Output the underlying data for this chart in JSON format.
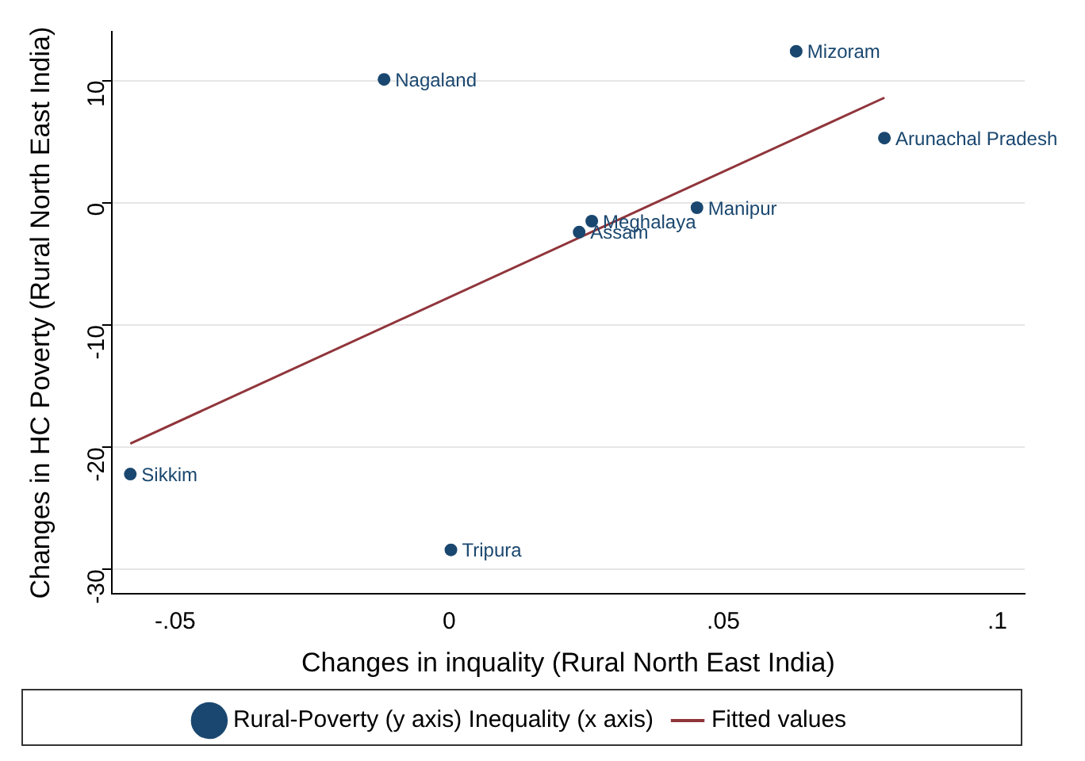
{
  "chart_data": {
    "type": "scatter",
    "xlabel": "Changes in inquality (Rural North East India)",
    "ylabel": "Changes in HC Poverty (Rural North East India)",
    "xlim": [
      -0.0616,
      0.105
    ],
    "xticks": [
      {
        "value": -0.05,
        "label": "-.05"
      },
      0,
      {
        "value": 0.05,
        "label": ".05"
      },
      {
        "value": 0.1,
        "label": ".1"
      }
    ],
    "ylim": [
      -32,
      14
    ],
    "yticks": [
      -30,
      -20,
      -10,
      0,
      10
    ],
    "grid": "y",
    "legend": "bottom",
    "marker": "circle",
    "series": [
      {
        "name": "Rural-Poverty (y axis) Inequality (x axis)",
        "color": "#1a476f",
        "x": [
          -0.0119,
          0.0633,
          0.0794,
          0.0452,
          0.026,
          0.0237,
          -0.0582,
          0.0003
        ],
        "values": [
          10.1,
          12.4,
          5.3,
          -0.4,
          -1.5,
          -2.4,
          -22.2,
          -28.4
        ]
      },
      {
        "name": "Fitted values",
        "type": "line",
        "color": "#90353b",
        "x": [
          -0.0582,
          0.0794
        ],
        "values": [
          -19.7,
          8.6
        ],
        "marker": "none"
      }
    ],
    "annotations": [
      {
        "text": "Nagaland",
        "x": -0.0119,
        "y": 10.1
      },
      {
        "text": "Mizoram",
        "x": 0.0633,
        "y": 12.4
      },
      {
        "text": "Arunachal Pradesh",
        "x": 0.0794,
        "y": 5.3
      },
      {
        "text": "Manipur",
        "x": 0.0452,
        "y": -0.4
      },
      {
        "text": "Meghalaya",
        "x": 0.026,
        "y": -1.5
      },
      {
        "text": "Assam",
        "x": 0.0237,
        "y": -2.4
      },
      {
        "text": "Sikkim",
        "x": -0.0582,
        "y": -22.2
      },
      {
        "text": "Tripura",
        "x": 0.0003,
        "y": -28.4
      }
    ]
  }
}
